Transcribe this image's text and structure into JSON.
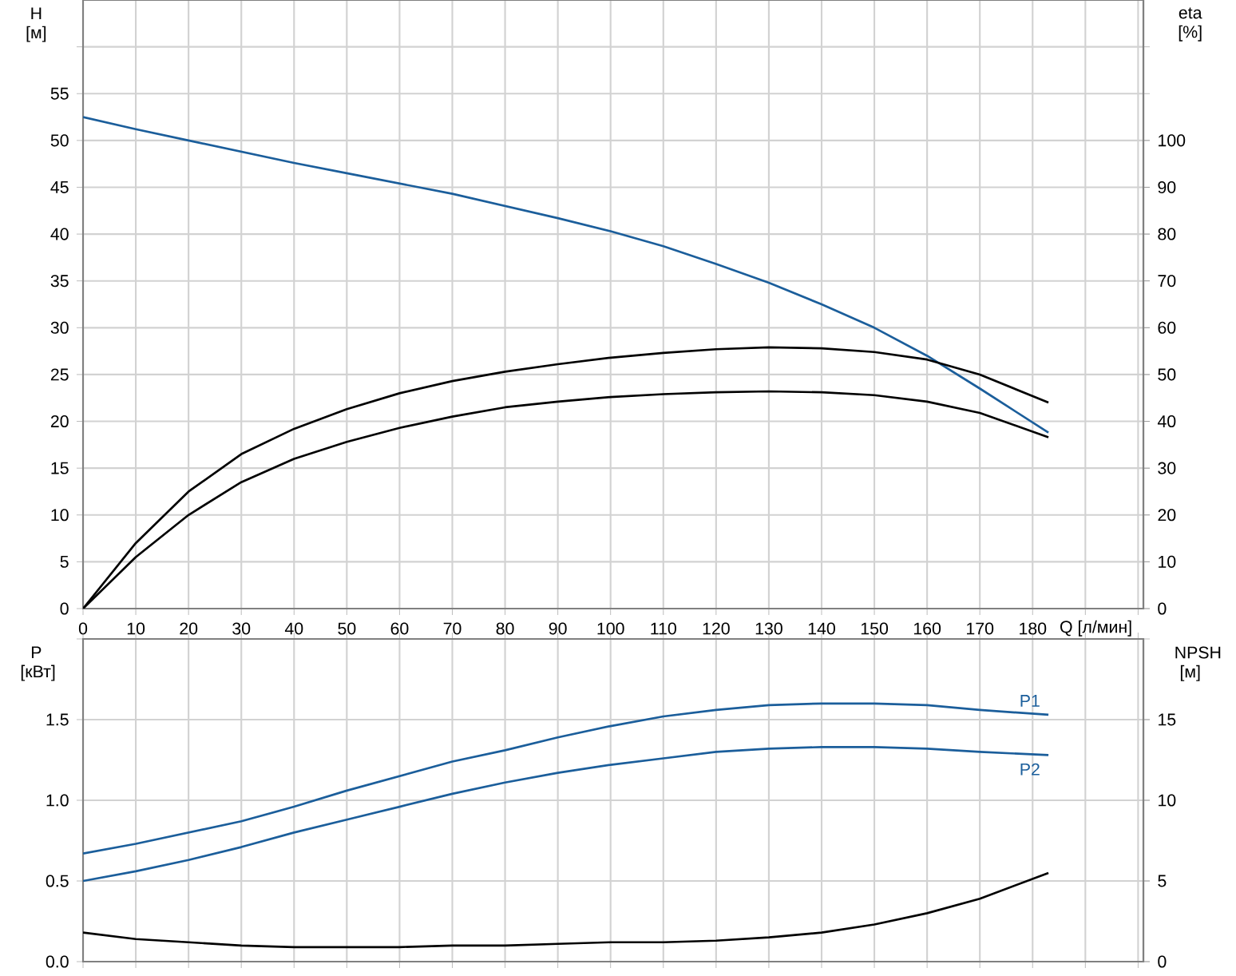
{
  "chart_data": [
    {
      "type": "line",
      "xlabel": "Q [л/мин]",
      "ylabel": "H [м]",
      "y2label": "eta [%]",
      "xlim": [
        0,
        201
      ],
      "xticks": [
        0,
        10,
        20,
        30,
        40,
        50,
        60,
        70,
        80,
        90,
        100,
        110,
        120,
        130,
        140,
        150,
        160,
        170,
        180,
        {
          "value": 190,
          "label": null
        },
        {
          "value": 200,
          "label": null
        }
      ],
      "ylim": [
        0,
        65
      ],
      "yticks": [
        0,
        5,
        10,
        15,
        20,
        25,
        30,
        35,
        40,
        45,
        50,
        55,
        {
          "value": 60,
          "label": null
        }
      ],
      "y2lim": [
        0,
        130
      ],
      "y2ticks": [
        0,
        10,
        20,
        30,
        40,
        50,
        60,
        70,
        80,
        90,
        100
      ],
      "grid": true,
      "x": [
        0,
        10,
        20,
        30,
        40,
        50,
        60,
        70,
        80,
        90,
        100,
        110,
        120,
        130,
        140,
        150,
        160,
        170,
        183
      ],
      "series": [
        {
          "color": "#1b5e9b",
          "values": [
            52.5,
            51.2,
            50,
            48.8,
            47.6,
            46.5,
            45.4,
            44.3,
            43,
            41.7,
            40.3,
            38.7,
            36.8,
            34.8,
            32.5,
            30,
            27,
            23.5,
            18.8
          ]
        },
        {
          "color": "#000000",
          "axis": "y2",
          "values": [
            0,
            14,
            25,
            33,
            38.4,
            42.6,
            46,
            48.6,
            50.6,
            52.2,
            53.6,
            54.6,
            55.4,
            55.8,
            55.6,
            54.8,
            53.2,
            50,
            44
          ]
        },
        {
          "color": "#000000",
          "axis": "y2",
          "values": [
            0,
            11,
            20,
            27,
            32,
            35.6,
            38.6,
            41,
            43,
            44.2,
            45.2,
            45.8,
            46.2,
            46.4,
            46.2,
            45.6,
            44.2,
            41.8,
            36.6
          ]
        }
      ]
    },
    {
      "type": "line",
      "ylabel": "P [кВт]",
      "y2label": "NPSH [м]",
      "tick_labels": "y",
      "xlim": [
        0,
        201
      ],
      "xticks": [
        0,
        10,
        20,
        30,
        40,
        50,
        60,
        70,
        80,
        90,
        100,
        110,
        120,
        130,
        140,
        150,
        160,
        170,
        180,
        190,
        200
      ],
      "ylim": [
        0,
        2
      ],
      "yticks": [
        {
          "value": 0,
          "label": "0.0"
        },
        0.5,
        {
          "value": 1,
          "label": "1.0"
        },
        1.5,
        {
          "value": 2,
          "label": null
        }
      ],
      "y2lim": [
        0,
        20
      ],
      "y2ticks": [
        0,
        5,
        10,
        15
      ],
      "grid": true,
      "x": [
        0,
        10,
        20,
        30,
        40,
        50,
        60,
        70,
        80,
        90,
        100,
        110,
        120,
        130,
        140,
        150,
        160,
        170,
        183
      ],
      "series": [
        {
          "name": "P1",
          "color": "#1b5e9b",
          "values": [
            0.67,
            0.73,
            0.8,
            0.87,
            0.96,
            1.06,
            1.15,
            1.24,
            1.31,
            1.39,
            1.46,
            1.52,
            1.56,
            1.59,
            1.6,
            1.6,
            1.59,
            1.56,
            1.53
          ]
        },
        {
          "name": "P2",
          "color": "#1b5e9b",
          "values": [
            0.5,
            0.56,
            0.63,
            0.71,
            0.8,
            0.88,
            0.96,
            1.04,
            1.11,
            1.17,
            1.22,
            1.26,
            1.3,
            1.32,
            1.33,
            1.33,
            1.32,
            1.3,
            1.28
          ]
        },
        {
          "color": "#000000",
          "axis": "y2",
          "values": [
            1.8,
            1.4,
            1.2,
            1.0,
            0.9,
            0.9,
            0.9,
            1.0,
            1.0,
            1.1,
            1.2,
            1.2,
            1.3,
            1.5,
            1.8,
            2.3,
            3.0,
            3.9,
            5.5
          ]
        }
      ]
    }
  ]
}
